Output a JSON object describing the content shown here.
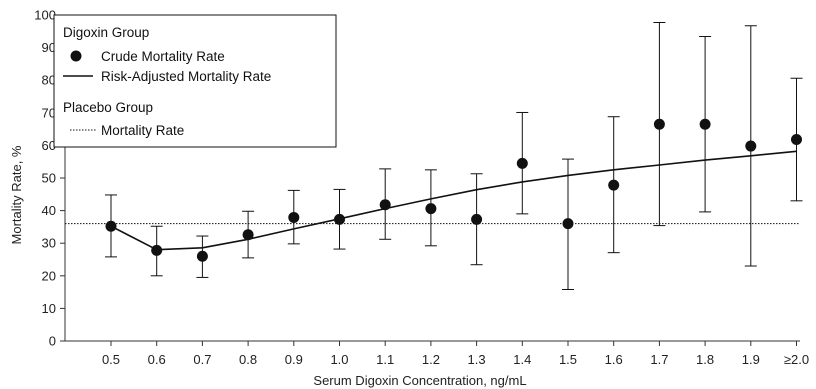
{
  "chart_data": {
    "type": "scatter",
    "title": "",
    "xlabel": "Serum Digoxin Concentration, ng/mL",
    "ylabel": "Mortality Rate, %",
    "ylim": [
      0,
      100
    ],
    "y_ticks": [
      0,
      10,
      20,
      30,
      40,
      50,
      60,
      70,
      80,
      90,
      100
    ],
    "categories": [
      "0.5",
      "0.6",
      "0.7",
      "0.8",
      "0.9",
      "1.0",
      "1.1",
      "1.2",
      "1.3",
      "1.4",
      "1.5",
      "1.6",
      "1.7",
      "1.8",
      "1.9",
      "≥2.0"
    ],
    "grid": false,
    "legend_position": "top-left",
    "legend": {
      "digoxin_group_title": "Digoxin Group",
      "crude_label": "Crude Mortality Rate",
      "adjusted_label": "Risk-Adjusted Mortality Rate",
      "placebo_group_title": "Placebo Group",
      "placebo_label": "Mortality Rate"
    },
    "series": [
      {
        "name": "Crude Mortality Rate",
        "type": "scatter",
        "values": [
          35.2,
          27.8,
          26.0,
          32.6,
          37.9,
          37.3,
          41.8,
          40.6,
          37.3,
          54.5,
          36.0,
          47.8,
          66.5,
          66.5,
          59.8,
          61.8
        ],
        "ci_low": [
          25.8,
          20.0,
          19.5,
          25.5,
          29.8,
          28.2,
          31.2,
          29.2,
          23.4,
          39.0,
          15.8,
          27.1,
          35.4,
          39.6,
          23.0,
          43.0
        ],
        "ci_high": [
          44.8,
          35.2,
          32.2,
          39.8,
          46.2,
          46.5,
          52.8,
          52.5,
          51.3,
          70.1,
          55.8,
          68.8,
          97.7,
          93.4,
          96.7,
          80.6
        ]
      },
      {
        "name": "Risk-Adjusted Mortality Rate",
        "type": "line",
        "values": [
          35.2,
          28.0,
          28.6,
          31.2,
          34.4,
          37.5,
          40.6,
          43.6,
          46.4,
          48.8,
          50.8,
          52.5,
          54.0,
          55.5,
          56.8,
          58.2
        ]
      },
      {
        "name": "Mortality Rate",
        "type": "reference-line",
        "value": 36.0
      }
    ],
    "colors": {
      "ink": "#111111",
      "axis": "#333333"
    }
  }
}
